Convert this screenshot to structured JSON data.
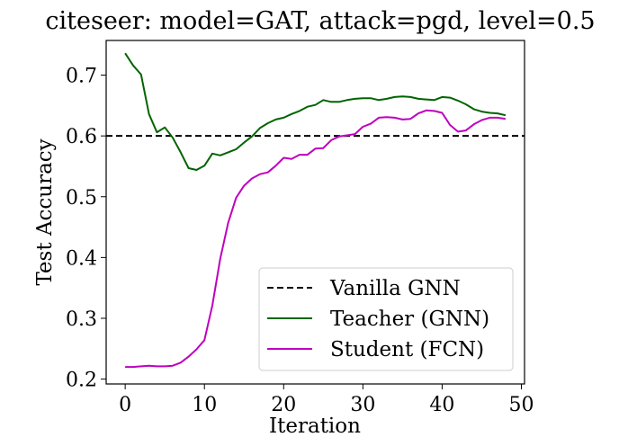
{
  "chart_data": {
    "type": "line",
    "title": "citeseer: model=GAT, attack=pgd, level=0.5",
    "xlabel": "Iteration",
    "ylabel": "Test Accuracy",
    "xlim": [
      -2.4,
      50.4
    ],
    "ylim": [
      0.192,
      0.757
    ],
    "xticks": [
      0,
      10,
      20,
      30,
      40,
      50
    ],
    "yticks": [
      0.2,
      0.3,
      0.4,
      0.5,
      0.6,
      0.7
    ],
    "xtick_labels": [
      "0",
      "10",
      "20",
      "30",
      "40",
      "50"
    ],
    "ytick_labels": [
      "0.2",
      "0.3",
      "0.4",
      "0.5",
      "0.6",
      "0.7"
    ],
    "grid": false,
    "legend_position": "lower-right",
    "hline": {
      "name": "Vanilla GNN",
      "y": 0.6,
      "color": "#000000",
      "style": "dashed"
    },
    "x": [
      0,
      1,
      2,
      3,
      4,
      5,
      6,
      7,
      8,
      9,
      10,
      11,
      12,
      13,
      14,
      15,
      16,
      17,
      18,
      19,
      20,
      21,
      22,
      23,
      24,
      25,
      26,
      27,
      28,
      29,
      30,
      31,
      32,
      33,
      34,
      35,
      36,
      37,
      38,
      39,
      40,
      41,
      42,
      43,
      44,
      45,
      46,
      47,
      48
    ],
    "series": [
      {
        "name": "Teacher (GNN)",
        "color": "#006400",
        "values": [
          0.736,
          0.716,
          0.701,
          0.636,
          0.606,
          0.614,
          0.597,
          0.573,
          0.547,
          0.544,
          0.551,
          0.571,
          0.568,
          0.573,
          0.578,
          0.589,
          0.599,
          0.613,
          0.621,
          0.627,
          0.63,
          0.636,
          0.641,
          0.648,
          0.651,
          0.659,
          0.656,
          0.656,
          0.659,
          0.661,
          0.662,
          0.662,
          0.659,
          0.661,
          0.664,
          0.665,
          0.664,
          0.661,
          0.66,
          0.659,
          0.664,
          0.663,
          0.658,
          0.652,
          0.644,
          0.64,
          0.638,
          0.637,
          0.634
        ]
      },
      {
        "name": "Student (FCN)",
        "color": "#bf00bf",
        "values": [
          0.22,
          0.22,
          0.221,
          0.222,
          0.221,
          0.221,
          0.222,
          0.227,
          0.237,
          0.249,
          0.264,
          0.321,
          0.398,
          0.457,
          0.498,
          0.518,
          0.53,
          0.537,
          0.54,
          0.551,
          0.564,
          0.562,
          0.569,
          0.569,
          0.579,
          0.58,
          0.593,
          0.599,
          0.601,
          0.603,
          0.615,
          0.62,
          0.63,
          0.631,
          0.63,
          0.627,
          0.628,
          0.637,
          0.642,
          0.641,
          0.638,
          0.618,
          0.607,
          0.609,
          0.619,
          0.626,
          0.63,
          0.63,
          0.628
        ]
      }
    ]
  }
}
